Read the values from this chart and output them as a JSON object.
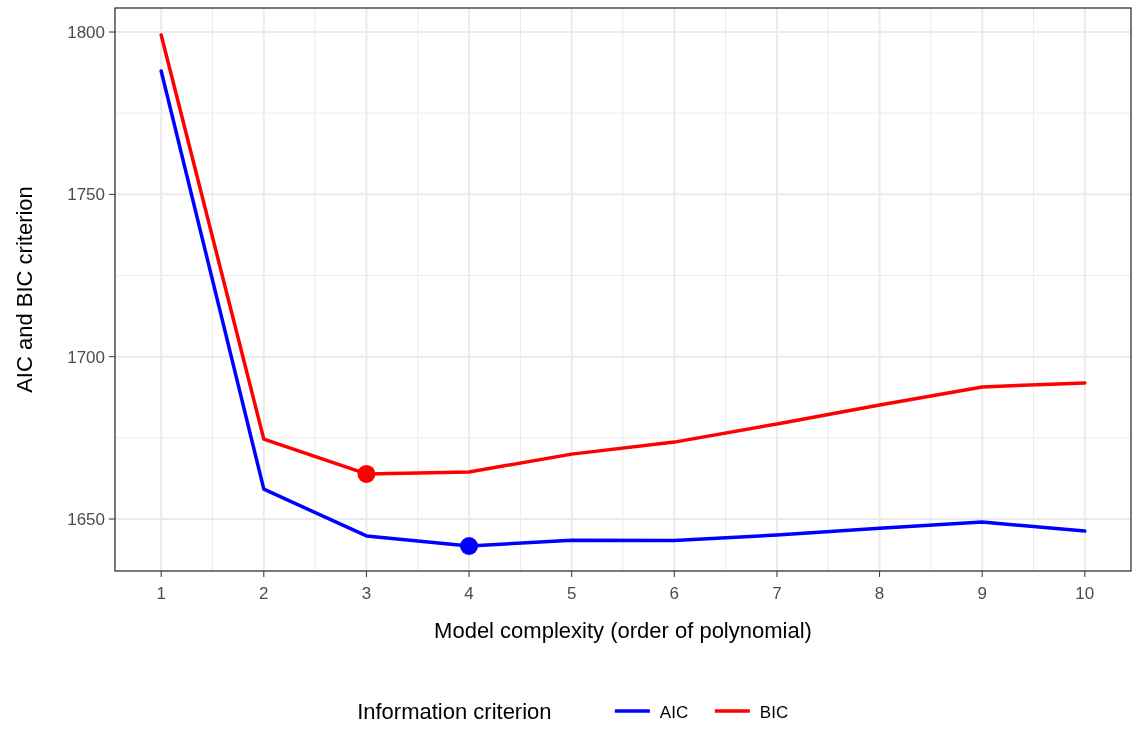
{
  "chart_data": {
    "type": "line",
    "xlabel": "Model complexity (order of polynomial)",
    "ylabel": "AIC and BIC criterion",
    "legend_title": "Information criterion",
    "x": [
      1,
      2,
      3,
      4,
      5,
      6,
      7,
      8,
      9,
      10
    ],
    "series": [
      {
        "name": "AIC",
        "color": "#0000ff",
        "values": [
          1788.0,
          1659.2,
          1644.8,
          1641.7,
          1643.5,
          1643.4,
          1645.1,
          1647.2,
          1649.1,
          1646.3
        ]
      },
      {
        "name": "BIC",
        "color": "#ff0000",
        "values": [
          1799.1,
          1674.6,
          1663.9,
          1664.5,
          1670.0,
          1673.7,
          1679.3,
          1685.1,
          1690.7,
          1691.9
        ]
      },
      {
        "type": "scatter",
        "color": "#ff0000",
        "x": [
          3
        ],
        "values": [
          1663.9
        ],
        "marker": "circle"
      },
      {
        "type": "scatter",
        "color": "#0000ff",
        "x": [
          4
        ],
        "values": [
          1641.7
        ],
        "marker": "circle"
      }
    ],
    "xlim": [
      0.55,
      10.45
    ],
    "xticks": [
      1,
      2,
      3,
      4,
      5,
      6,
      7,
      8,
      9,
      10
    ],
    "ylim": [
      1634,
      1807.4
    ],
    "yticks": [
      1650,
      1700,
      1750,
      1800
    ],
    "grid": true,
    "legend": "bottom"
  }
}
